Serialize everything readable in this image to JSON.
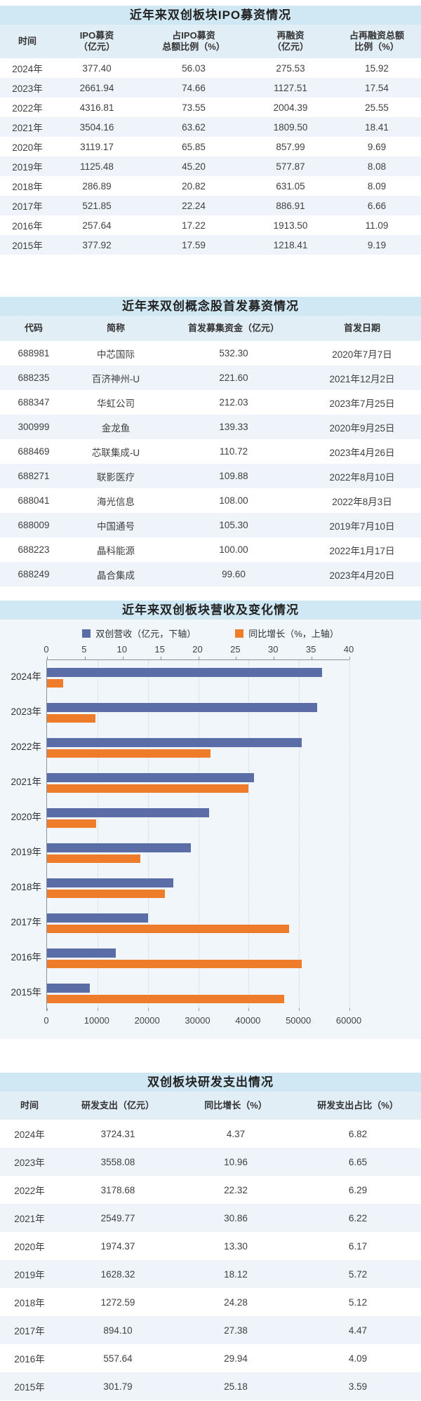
{
  "colors": {
    "title_band": "#cfe8f4",
    "header_row": "#e2eef6",
    "stripe_row": "#eef4f9",
    "chart_bg": "#f0f6f9",
    "revenue_bar": "#5a6da6",
    "growth_bar": "#ee7c2b",
    "axis_line": "#8a949e"
  },
  "ipo_table": {
    "title": "近年来双创板块IPO募资情况",
    "headers": [
      "时间",
      "IPO募资\n（亿元）",
      "占IPO募资\n总额比例（%）",
      "再融资\n（亿元）",
      "占再融资总额\n比例（%）"
    ],
    "rows": [
      [
        "2024年",
        "377.40",
        "56.03",
        "275.53",
        "15.92"
      ],
      [
        "2023年",
        "2661.94",
        "74.66",
        "1127.51",
        "17.54"
      ],
      [
        "2022年",
        "4316.81",
        "73.55",
        "2004.39",
        "25.55"
      ],
      [
        "2021年",
        "3504.16",
        "63.62",
        "1809.50",
        "18.41"
      ],
      [
        "2020年",
        "3119.17",
        "65.85",
        "857.99",
        "9.69"
      ],
      [
        "2019年",
        "1125.48",
        "45.20",
        "577.87",
        "8.08"
      ],
      [
        "2018年",
        "286.89",
        "20.82",
        "631.05",
        "8.09"
      ],
      [
        "2017年",
        "521.85",
        "22.24",
        "886.91",
        "6.66"
      ],
      [
        "2016年",
        "257.64",
        "17.22",
        "1913.50",
        "11.09"
      ],
      [
        "2015年",
        "377.92",
        "17.59",
        "1218.41",
        "9.19"
      ]
    ]
  },
  "first_issue_table": {
    "title": "近年来双创概念股首发募资情况",
    "headers": [
      "代码",
      "简称",
      "首发募集资金（亿元）",
      "首发日期"
    ],
    "rows": [
      [
        "688981",
        "中芯国际",
        "532.30",
        "2020年7月7日"
      ],
      [
        "688235",
        "百济神州-U",
        "221.60",
        "2021年12月2日"
      ],
      [
        "688347",
        "华虹公司",
        "212.03",
        "2023年7月25日"
      ],
      [
        "300999",
        "金龙鱼",
        "139.33",
        "2020年9月25日"
      ],
      [
        "688469",
        "芯联集成-U",
        "110.72",
        "2023年4月26日"
      ],
      [
        "688271",
        "联影医疗",
        "109.88",
        "2022年8月10日"
      ],
      [
        "688041",
        "海光信息",
        "108.00",
        "2022年8月3日"
      ],
      [
        "688009",
        "中国通号",
        "105.30",
        "2019年7月10日"
      ],
      [
        "688223",
        "晶科能源",
        "100.00",
        "2022年1月17日"
      ],
      [
        "688249",
        "晶合集成",
        "99.60",
        "2023年4月20日"
      ]
    ]
  },
  "chart_data": {
    "type": "bar",
    "orientation": "horizontal",
    "title": "近年来双创板块营收及变化情况",
    "categories": [
      "2024年",
      "2023年",
      "2022年",
      "2021年",
      "2020年",
      "2019年",
      "2018年",
      "2017年",
      "2016年",
      "2015年"
    ],
    "series": [
      {
        "name": "双创营收（亿元，下轴）",
        "axis": "bottom",
        "color": "#5a6da6",
        "values": [
          54600,
          53600,
          50600,
          41100,
          32100,
          28500,
          25000,
          20000,
          13700,
          8450
        ]
      },
      {
        "name": "同比增长（%，上轴）",
        "axis": "top",
        "color": "#ee7c2b",
        "values": [
          2.1,
          6.4,
          21.6,
          26.6,
          6.5,
          12.3,
          15.6,
          32.0,
          33.7,
          31.4
        ]
      }
    ],
    "top_axis": {
      "ticks": [
        0,
        5,
        10,
        15,
        20,
        25,
        30,
        35,
        40
      ],
      "range": [
        0,
        40
      ]
    },
    "bottom_axis": {
      "ticks": [
        0,
        10000,
        20000,
        30000,
        40000,
        50000,
        60000
      ],
      "range": [
        0,
        60000
      ]
    },
    "grid": "vertical-dotted",
    "legend_position": "top"
  },
  "rnd_table": {
    "title": "双创板块研发支出情况",
    "headers": [
      "时间",
      "研发支出（亿元）",
      "同比增长（%）",
      "研发支出占比（%）"
    ],
    "rows": [
      [
        "2024年",
        "3724.31",
        "4.37",
        "6.82"
      ],
      [
        "2023年",
        "3558.08",
        "10.96",
        "6.65"
      ],
      [
        "2022年",
        "3178.68",
        "22.32",
        "6.29"
      ],
      [
        "2021年",
        "2549.77",
        "30.86",
        "6.22"
      ],
      [
        "2020年",
        "1974.37",
        "13.30",
        "6.17"
      ],
      [
        "2019年",
        "1628.32",
        "18.12",
        "5.72"
      ],
      [
        "2018年",
        "1272.59",
        "24.28",
        "5.12"
      ],
      [
        "2017年",
        "894.10",
        "27.38",
        "4.47"
      ],
      [
        "2016年",
        "557.64",
        "29.94",
        "4.09"
      ],
      [
        "2015年",
        "301.79",
        "25.18",
        "3.59"
      ]
    ]
  }
}
